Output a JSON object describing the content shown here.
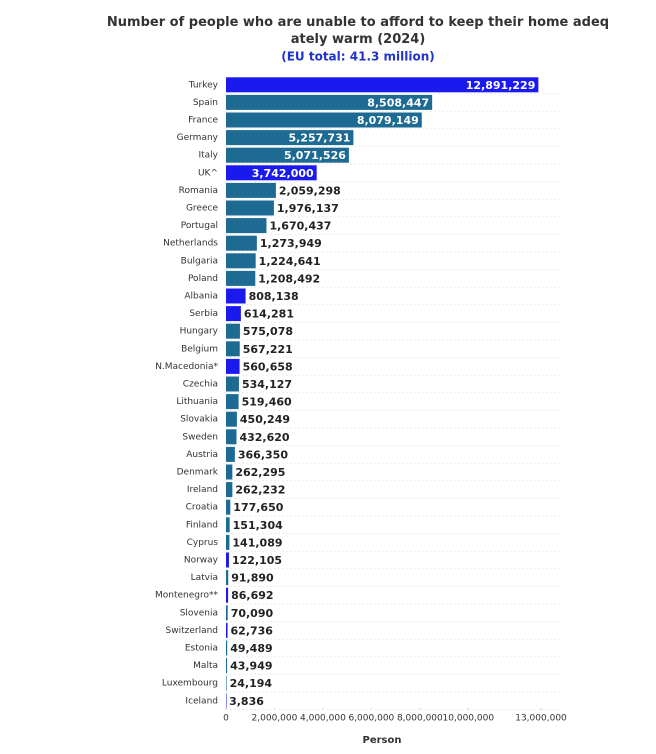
{
  "chart_data": {
    "type": "hbar",
    "title": "Number of people who are unable to afford to keep their home adequately warm (2024)",
    "subtitle": "(EU total: 41.3 million)",
    "x_label": "Person",
    "categories": [
      "Turkey",
      "Spain",
      "France",
      "Germany",
      "Italy",
      "UK^",
      "Romania",
      "Greece",
      "Portugal",
      "Netherlands",
      "Bulgaria",
      "Poland",
      "Albania",
      "Serbia",
      "Hungary",
      "Belgium",
      "N.Macedonia*",
      "Czechia",
      "Lithuania",
      "Slovakia",
      "Sweden",
      "Austria",
      "Denmark",
      "Ireland",
      "Croatia",
      "Finland",
      "Cyprus",
      "Norway",
      "Latvia",
      "Montenegro**",
      "Slovenia",
      "Switzerland",
      "Estonia",
      "Malta",
      "Luxembourg",
      "Iceland"
    ],
    "values": [
      12891229,
      8508447,
      8079149,
      5257731,
      5071526,
      3742000,
      2059298,
      1976137,
      1670437,
      1273949,
      1224641,
      1208492,
      808138,
      614281,
      575078,
      567221,
      560658,
      534127,
      519460,
      450249,
      432620,
      366350,
      262295,
      262232,
      177650,
      151304,
      141089,
      122105,
      91890,
      86692,
      70090,
      62736,
      49489,
      43949,
      24194,
      3836
    ],
    "value_labels": [
      "12,891,229",
      "8,508,447",
      "8,079,149",
      "5,257,731",
      "5,071,526",
      "3,742,000",
      "2,059,298",
      "1,976,137",
      "1,670,437",
      "1,273,949",
      "1,224,641",
      "1,208,492",
      "808,138",
      "614,281",
      "575,078",
      "567,221",
      "560,658",
      "534,127",
      "519,460",
      "450,249",
      "432,620",
      "366,350",
      "262,295",
      "262,232",
      "177,650",
      "151,304",
      "141,089",
      "122,105",
      "91,890",
      "86,692",
      "70,090",
      "62,736",
      "49,489",
      "43,949",
      "24,194",
      "3,836"
    ],
    "colors": [
      "#1a1aee",
      "#1d6a93",
      "#1d6a93",
      "#1d6a93",
      "#1d6a93",
      "#1a1aee",
      "#1d6a93",
      "#1d6a93",
      "#1d6a93",
      "#1d6a93",
      "#1d6a93",
      "#1d6a93",
      "#1a1aee",
      "#1a1aee",
      "#1d6a93",
      "#1d6a93",
      "#1a1aee",
      "#1d6a93",
      "#1d6a93",
      "#1d6a93",
      "#1d6a93",
      "#1d6a93",
      "#1d6a93",
      "#1d6a93",
      "#1d6a93",
      "#1d6a93",
      "#1d6a93",
      "#1a1aee",
      "#1d6a93",
      "#1a1aee",
      "#1d6a93",
      "#1a1aee",
      "#1d6a93",
      "#1d6a93",
      "#1d6a93",
      "#1a1aee"
    ],
    "xlim": [
      0,
      13000000
    ],
    "xticks": [
      0,
      {
        "value": 2000000,
        "label": "2,000,000"
      },
      {
        "value": 4000000,
        "label": "4,000,000"
      },
      {
        "value": 6000000,
        "label": "6,000,000"
      },
      {
        "value": 8000000,
        "label": "8,000,000"
      },
      {
        "value": 10000000,
        "label": "10,000,000"
      },
      {
        "value": 13000000,
        "label": "13,000,000"
      }
    ]
  }
}
